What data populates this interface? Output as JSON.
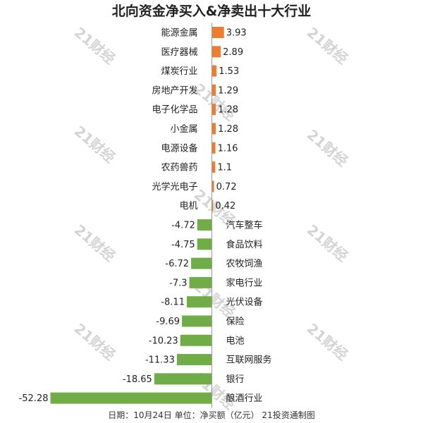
{
  "chart_data": {
    "type": "bar",
    "orientation": "horizontal",
    "title": "北向资金净买入&净卖出十大行业",
    "categories": [
      "能源金属",
      "医疗器械",
      "煤炭行业",
      "房地产开发",
      "电子化学品",
      "小金属",
      "电源设备",
      "农药兽药",
      "光学光电子",
      "电机",
      "汽车整车",
      "食品饮料",
      "农牧饲渔",
      "家电行业",
      "光伏设备",
      "保险",
      "电池",
      "互联网服务",
      "银行",
      "酿酒行业"
    ],
    "values": [
      3.93,
      2.89,
      1.53,
      1.29,
      1.28,
      1.28,
      1.16,
      1.1,
      0.72,
      0.42,
      -4.72,
      -4.75,
      -6.72,
      -7.3,
      -8.11,
      -9.69,
      -10.23,
      -11.33,
      -18.65,
      -52.28
    ],
    "value_labels": [
      "3.93",
      "2.89",
      "1.53",
      "1.29",
      "1.28",
      "1.28",
      "1.16",
      "1.1",
      "0.72",
      "0.42",
      "-4.72",
      "-4.75",
      "-6.72",
      "-7.3",
      "-8.11",
      "-9.69",
      "-10.23",
      "-11.33",
      "-18.65",
      "-52.28"
    ],
    "colors": {
      "positive": "#ed7d31",
      "negative": "#70ad47"
    },
    "grid": false,
    "legend": "none"
  },
  "footer": "日期：10月24日  单位：净买额（亿元）  21投资通制图",
  "watermark": "21财经"
}
